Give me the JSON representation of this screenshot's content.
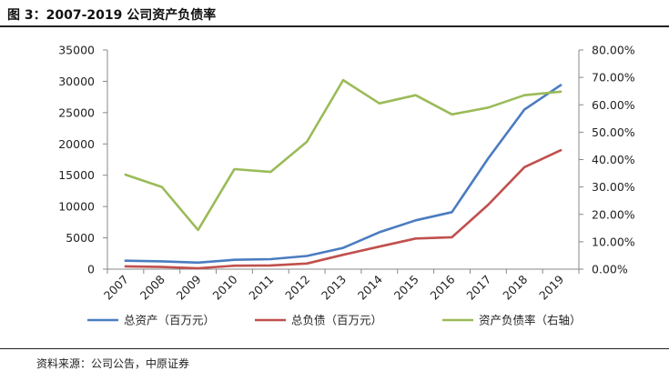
{
  "figure_title": "图 3：2007-2019 公司资产负债率",
  "source_note": "资料来源：公司公告，中原证券",
  "chart_data": {
    "type": "line",
    "categories": [
      "2007",
      "2008",
      "2009",
      "2010",
      "2011",
      "2012",
      "2013",
      "2014",
      "2015",
      "2016",
      "2017",
      "2018",
      "2019"
    ],
    "series": [
      {
        "name": "总资产（百万元）",
        "axis": "left",
        "color": "#4a7cc0",
        "values": [
          1350,
          1250,
          1050,
          1500,
          1600,
          2100,
          3400,
          5900,
          7800,
          9100,
          17700,
          25500,
          29400
        ]
      },
      {
        "name": "总负债（百万元）",
        "axis": "left",
        "color": "#c0504d",
        "values": [
          450,
          350,
          150,
          550,
          600,
          900,
          2300,
          3600,
          4900,
          5100,
          10300,
          16300,
          19000
        ]
      },
      {
        "name": "资产负债率（右轴）",
        "axis": "right",
        "color": "#9bbb59",
        "values": [
          0.345,
          0.3,
          0.143,
          0.365,
          0.355,
          0.465,
          0.69,
          0.605,
          0.635,
          0.565,
          0.59,
          0.635,
          0.648
        ]
      }
    ],
    "y_left": {
      "min": 0,
      "max": 35000,
      "ticks": [
        "0",
        "5000",
        "10000",
        "15000",
        "20000",
        "25000",
        "30000",
        "35000"
      ]
    },
    "y_right": {
      "min": 0,
      "max": 0.8,
      "ticks": [
        "0.00%",
        "10.00%",
        "20.00%",
        "30.00%",
        "40.00%",
        "50.00%",
        "60.00%",
        "70.00%",
        "80.00%"
      ]
    },
    "grid": false,
    "legend_position": "bottom"
  }
}
